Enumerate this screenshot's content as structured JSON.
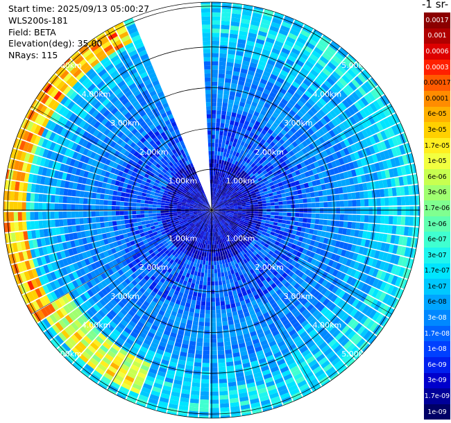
{
  "info": {
    "start_time": "Start time: 2025/09/13 05:00:27",
    "instrument": "WLS200s-181",
    "field": "Field: BETA",
    "elevation": "Elevation(deg): 35.00",
    "nrays": "NRays: 115"
  },
  "colorbar": {
    "units_label": "-1 sr-",
    "labels": [
      "0.0017",
      "0.001",
      "0.0006",
      "0.0003",
      "0.00017",
      "0.0001",
      "6e-05",
      "3e-05",
      "1.7e-05",
      "1e-05",
      "6e-06",
      "3e-06",
      "1.7e-06",
      "1e-06",
      "6e-07",
      "3e-07",
      "1.7e-07",
      "1e-07",
      "6e-08",
      "3e-08",
      "1.7e-08",
      "1e-08",
      "6e-09",
      "3e-09",
      "1.7e-09",
      "1e-09"
    ],
    "colors": [
      "#8b0000",
      "#b00000",
      "#dd0000",
      "#ff2000",
      "#ff5a00",
      "#ff8c00",
      "#ffb000",
      "#ffd000",
      "#ffee20",
      "#f2ff40",
      "#c8ff50",
      "#a0ff70",
      "#80ff90",
      "#60ffb0",
      "#40ffd0",
      "#20f5ee",
      "#00e5ff",
      "#00c8ff",
      "#00a5ff",
      "#0088ff",
      "#0064ff",
      "#0040ff",
      "#0020ee",
      "#0000cc",
      "#000099",
      "#000066"
    ],
    "text_colors": [
      "#ffffff",
      "#ffffff",
      "#ffffff",
      "#ffffff",
      "#000000",
      "#000000",
      "#000000",
      "#000000",
      "#000000",
      "#000000",
      "#000000",
      "#000000",
      "#000000",
      "#000000",
      "#000000",
      "#000000",
      "#000000",
      "#000000",
      "#000000",
      "#ffffff",
      "#ffffff",
      "#ffffff",
      "#ffffff",
      "#ffffff",
      "#ffffff",
      "#ffffff"
    ]
  },
  "chart_data": {
    "type": "heatmap",
    "projection": "polar",
    "ring_labels": [
      "1.00km",
      "2.00km",
      "3.00km",
      "4.00km",
      "5.00km"
    ],
    "ring_ranges_km": [
      1,
      2,
      3,
      4,
      5
    ],
    "max_range_km": 5.1,
    "n_rays": 115,
    "gap_azimuth_deg": [
      -22,
      -3
    ],
    "grid": true,
    "colormap": "jet-like, log scale"
  }
}
